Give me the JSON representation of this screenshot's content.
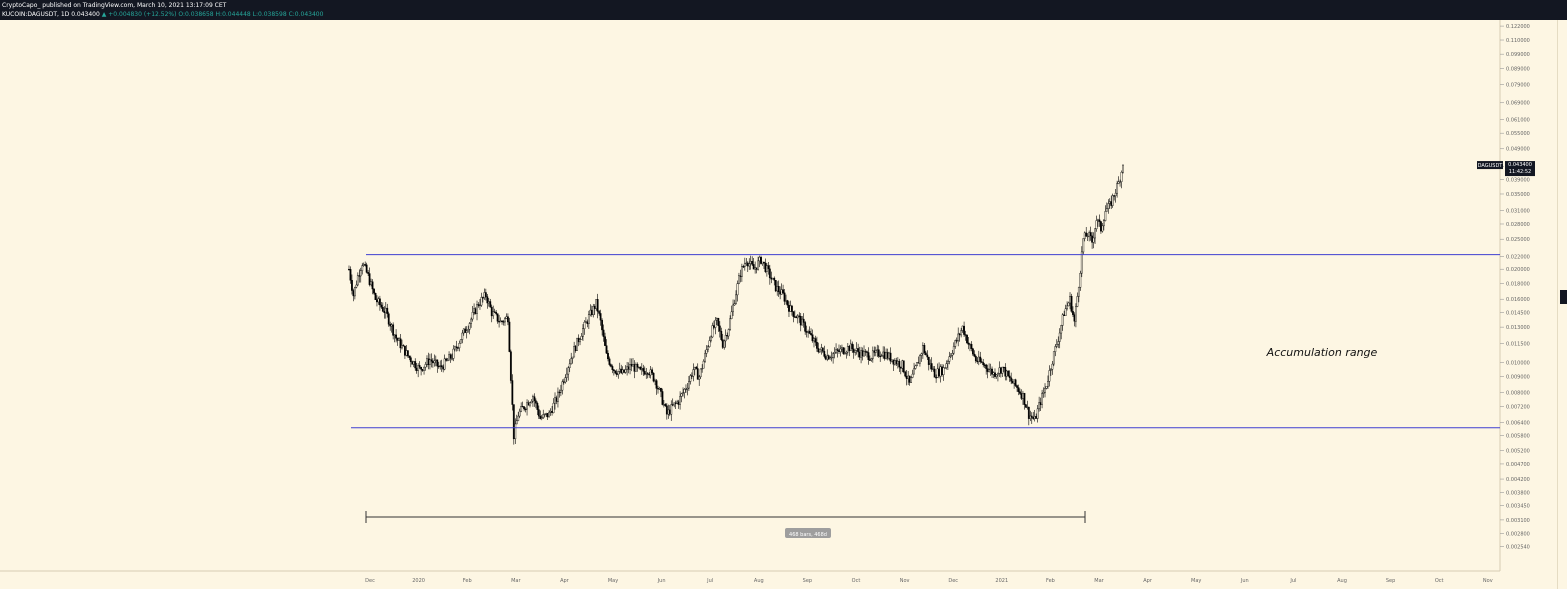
{
  "header": {
    "line1": "CryptoCapo_ published on TradingView.com, March 10, 2021 13:17:09 CET",
    "symbol": "KUCOIN:DAGUSDT, 1D",
    "last": "0.043400",
    "change": "▲ +0.004830 (+12.52%)",
    "ohlc_o": "O:0.038658",
    "ohlc_h": "H:0.044448",
    "ohlc_l": "L:0.038598",
    "ohlc_c": "C:0.043400"
  },
  "colors": {
    "background": "#fdf6e3",
    "candle": "#000000",
    "range_line": "#3f3fd1",
    "up_text": "#26a69a"
  },
  "chart_data": {
    "type": "candlestick",
    "symbol_label": "DAGUSDT",
    "last_price": "0.043400",
    "countdown": "11:42:52",
    "y_scale": "log",
    "ylim": [
      0.0022,
      0.123
    ],
    "y_ticks": [
      "0.122000",
      "0.110000",
      "0.099000",
      "0.089000",
      "0.079000",
      "0.069000",
      "0.061000",
      "0.055000",
      "0.049000",
      "0.043000",
      "0.039000",
      "0.035000",
      "0.031000",
      "0.028000",
      "0.025000",
      "0.022000",
      "0.020000",
      "0.018000",
      "0.016000",
      "0.014500",
      "0.013000",
      "0.011500",
      "0.010000",
      "0.009000",
      "0.008000",
      "0.007200",
      "0.006400",
      "0.005800",
      "0.005200",
      "0.004700",
      "0.004200",
      "0.003800",
      "0.003450",
      "0.003100",
      "0.002800",
      "0.002540"
    ],
    "x_ticks": [
      "Dec",
      "2020",
      "Feb",
      "Mar",
      "Apr",
      "May",
      "Jun",
      "Jul",
      "Aug",
      "Sep",
      "Oct",
      "Nov",
      "Dec",
      "2021",
      "Feb",
      "Mar",
      "Apr",
      "May",
      "Jun",
      "Jul",
      "Aug",
      "Sep",
      "Oct",
      "Nov"
    ],
    "anchors": [
      {
        "t": 0,
        "v": 0.02
      },
      {
        "t": 3,
        "v": 0.0165
      },
      {
        "t": 6,
        "v": 0.019
      },
      {
        "t": 9,
        "v": 0.021
      },
      {
        "t": 13,
        "v": 0.019
      },
      {
        "t": 18,
        "v": 0.016
      },
      {
        "t": 25,
        "v": 0.0145
      },
      {
        "t": 32,
        "v": 0.012
      },
      {
        "t": 40,
        "v": 0.0105
      },
      {
        "t": 48,
        "v": 0.0095
      },
      {
        "t": 55,
        "v": 0.0102
      },
      {
        "t": 62,
        "v": 0.0096
      },
      {
        "t": 70,
        "v": 0.0105
      },
      {
        "t": 76,
        "v": 0.012
      },
      {
        "t": 82,
        "v": 0.0135
      },
      {
        "t": 88,
        "v": 0.0155
      },
      {
        "t": 93,
        "v": 0.0165
      },
      {
        "t": 97,
        "v": 0.0145
      },
      {
        "t": 103,
        "v": 0.0135
      },
      {
        "t": 108,
        "v": 0.014
      },
      {
        "t": 110,
        "v": 0.009
      },
      {
        "t": 112,
        "v": 0.0058
      },
      {
        "t": 115,
        "v": 0.0068
      },
      {
        "t": 119,
        "v": 0.0072
      },
      {
        "t": 125,
        "v": 0.0078
      },
      {
        "t": 130,
        "v": 0.0066
      },
      {
        "t": 136,
        "v": 0.0068
      },
      {
        "t": 142,
        "v": 0.0078
      },
      {
        "t": 148,
        "v": 0.0095
      },
      {
        "t": 153,
        "v": 0.011
      },
      {
        "t": 158,
        "v": 0.0125
      },
      {
        "t": 163,
        "v": 0.014
      },
      {
        "t": 168,
        "v": 0.0155
      },
      {
        "t": 171,
        "v": 0.0135
      },
      {
        "t": 175,
        "v": 0.0105
      },
      {
        "t": 180,
        "v": 0.0095
      },
      {
        "t": 186,
        "v": 0.0092
      },
      {
        "t": 192,
        "v": 0.0098
      },
      {
        "t": 198,
        "v": 0.0093
      },
      {
        "t": 203,
        "v": 0.0095
      },
      {
        "t": 208,
        "v": 0.0088
      },
      {
        "t": 212,
        "v": 0.0078
      },
      {
        "t": 216,
        "v": 0.0068
      },
      {
        "t": 220,
        "v": 0.0072
      },
      {
        "t": 224,
        "v": 0.0075
      },
      {
        "t": 230,
        "v": 0.0085
      },
      {
        "t": 234,
        "v": 0.0095
      },
      {
        "t": 238,
        "v": 0.009
      },
      {
        "t": 242,
        "v": 0.0105
      },
      {
        "t": 246,
        "v": 0.0125
      },
      {
        "t": 250,
        "v": 0.0135
      },
      {
        "t": 254,
        "v": 0.0115
      },
      {
        "t": 258,
        "v": 0.013
      },
      {
        "t": 262,
        "v": 0.016
      },
      {
        "t": 266,
        "v": 0.0195
      },
      {
        "t": 270,
        "v": 0.0215
      },
      {
        "t": 275,
        "v": 0.02
      },
      {
        "t": 280,
        "v": 0.0215
      },
      {
        "t": 285,
        "v": 0.0195
      },
      {
        "t": 290,
        "v": 0.0175
      },
      {
        "t": 295,
        "v": 0.0165
      },
      {
        "t": 300,
        "v": 0.0148
      },
      {
        "t": 306,
        "v": 0.0138
      },
      {
        "t": 312,
        "v": 0.0125
      },
      {
        "t": 318,
        "v": 0.0112
      },
      {
        "t": 325,
        "v": 0.0105
      },
      {
        "t": 332,
        "v": 0.0108
      },
      {
        "t": 340,
        "v": 0.0112
      },
      {
        "t": 348,
        "v": 0.0107
      },
      {
        "t": 355,
        "v": 0.0105
      },
      {
        "t": 362,
        "v": 0.0108
      },
      {
        "t": 370,
        "v": 0.0102
      },
      {
        "t": 376,
        "v": 0.0098
      },
      {
        "t": 381,
        "v": 0.0085
      },
      {
        "t": 386,
        "v": 0.0098
      },
      {
        "t": 390,
        "v": 0.0112
      },
      {
        "t": 394,
        "v": 0.01
      },
      {
        "t": 398,
        "v": 0.0092
      },
      {
        "t": 404,
        "v": 0.0095
      },
      {
        "t": 408,
        "v": 0.0105
      },
      {
        "t": 413,
        "v": 0.0118
      },
      {
        "t": 417,
        "v": 0.013
      },
      {
        "t": 421,
        "v": 0.0115
      },
      {
        "t": 426,
        "v": 0.0102
      },
      {
        "t": 432,
        "v": 0.0098
      },
      {
        "t": 438,
        "v": 0.0092
      },
      {
        "t": 444,
        "v": 0.0096
      },
      {
        "t": 449,
        "v": 0.0088
      },
      {
        "t": 454,
        "v": 0.0083
      },
      {
        "t": 458,
        "v": 0.0078
      },
      {
        "t": 462,
        "v": 0.0068
      },
      {
        "t": 466,
        "v": 0.0065
      },
      {
        "t": 470,
        "v": 0.0075
      },
      {
        "t": 474,
        "v": 0.0085
      },
      {
        "t": 478,
        "v": 0.0102
      },
      {
        "t": 482,
        "v": 0.012
      },
      {
        "t": 486,
        "v": 0.0145
      },
      {
        "t": 490,
        "v": 0.016
      },
      {
        "t": 493,
        "v": 0.0135
      },
      {
        "t": 496,
        "v": 0.018
      },
      {
        "t": 499,
        "v": 0.025
      },
      {
        "t": 502,
        "v": 0.026
      },
      {
        "t": 505,
        "v": 0.0245
      },
      {
        "t": 508,
        "v": 0.029
      },
      {
        "t": 511,
        "v": 0.027
      },
      {
        "t": 514,
        "v": 0.031
      },
      {
        "t": 517,
        "v": 0.032
      },
      {
        "t": 520,
        "v": 0.035
      },
      {
        "t": 523,
        "v": 0.038
      },
      {
        "t": 526,
        "v": 0.0434
      }
    ],
    "range_top": 0.0223,
    "range_bottom": 0.00615,
    "annotation": "Accumulation range",
    "measure_label": "468 bars, 468d"
  }
}
